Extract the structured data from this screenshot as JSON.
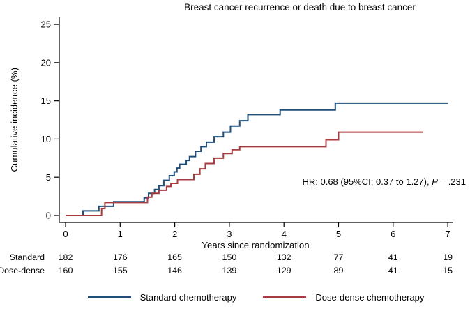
{
  "title": "Breast cancer recurrence or death due to breast cancer",
  "annotation": {
    "prefix": "HR: 0.68 (95%CI: 0.37 to 1.27), ",
    "p_label": "P",
    "p_suffix": " = .231"
  },
  "chart_data": {
    "type": "line",
    "subtype": "step-cumulative-incidence",
    "title": "Breast cancer recurrence or death due to breast cancer",
    "xlabel": "Years since randomization",
    "ylabel": "Cumulative incidence (%)",
    "xlim": [
      0,
      7
    ],
    "ylim": [
      0,
      25
    ],
    "x_ticks": [
      0,
      1,
      2,
      3,
      4,
      5,
      6,
      7
    ],
    "y_ticks": [
      0,
      5,
      10,
      15,
      20,
      25
    ],
    "grid": false,
    "legend_position": "bottom",
    "annotation_text": "HR: 0.68 (95%CI: 0.37 to 1.27), P = .231",
    "series": [
      {
        "name": "Standard chemotherapy",
        "color": "#1f4e79",
        "end_x": 7.0,
        "final_value": 14.7,
        "steps": [
          [
            0,
            0
          ],
          [
            0.32,
            0.6
          ],
          [
            0.61,
            1.2
          ],
          [
            0.88,
            1.8
          ],
          [
            1.44,
            2.3
          ],
          [
            1.52,
            2.9
          ],
          [
            1.63,
            3.4
          ],
          [
            1.71,
            3.9
          ],
          [
            1.8,
            4.6
          ],
          [
            1.9,
            5.2
          ],
          [
            1.99,
            5.7
          ],
          [
            2.04,
            6.2
          ],
          [
            2.09,
            6.7
          ],
          [
            2.21,
            7.2
          ],
          [
            2.27,
            7.7
          ],
          [
            2.38,
            8.4
          ],
          [
            2.48,
            9.0
          ],
          [
            2.58,
            9.6
          ],
          [
            2.72,
            10.3
          ],
          [
            2.89,
            10.9
          ],
          [
            3.02,
            11.7
          ],
          [
            3.19,
            12.4
          ],
          [
            3.34,
            13.2
          ],
          [
            3.93,
            13.8
          ],
          [
            4.94,
            14.7
          ]
        ]
      },
      {
        "name": "Dose-dense chemotherapy",
        "color": "#a93b40",
        "end_x": 6.55,
        "final_value": 10.9,
        "steps": [
          [
            0,
            0
          ],
          [
            0.66,
            0.9
          ],
          [
            0.72,
            1.7
          ],
          [
            1.5,
            2.4
          ],
          [
            1.58,
            2.9
          ],
          [
            1.71,
            3.3
          ],
          [
            1.85,
            3.8
          ],
          [
            1.93,
            4.2
          ],
          [
            2.05,
            4.7
          ],
          [
            2.35,
            5.4
          ],
          [
            2.46,
            6.1
          ],
          [
            2.56,
            6.8
          ],
          [
            2.72,
            7.5
          ],
          [
            2.89,
            8.1
          ],
          [
            3.05,
            8.6
          ],
          [
            3.19,
            9.0
          ],
          [
            4.77,
            9.9
          ],
          [
            5.0,
            10.9
          ]
        ]
      }
    ],
    "risk_table": {
      "rows": [
        {
          "label": "Standard",
          "counts": [
            182,
            176,
            165,
            150,
            132,
            77,
            41,
            19
          ]
        },
        {
          "label": "Dose-dense",
          "counts": [
            160,
            155,
            146,
            139,
            129,
            89,
            41,
            15
          ]
        }
      ]
    }
  }
}
